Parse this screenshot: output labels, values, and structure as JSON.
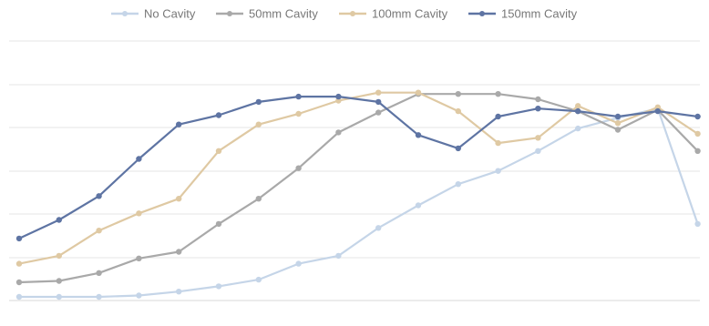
{
  "chart_data": {
    "type": "line",
    "x": [
      "1",
      "2",
      "3",
      "4",
      "5",
      "6",
      "7",
      "8",
      "9",
      "10",
      "11",
      "12",
      "13",
      "14",
      "15",
      "16",
      "17",
      "18"
    ],
    "ylim": [
      0,
      1.6
    ],
    "grid": true,
    "legend_position": "top-center",
    "series": [
      {
        "name": "No Cavity",
        "color": "#c5d5e8",
        "values": [
          0.0,
          0.0,
          0.0,
          0.01,
          0.04,
          0.08,
          0.13,
          0.25,
          0.31,
          0.52,
          0.69,
          0.85,
          0.95,
          1.1,
          1.27,
          1.35,
          1.42,
          0.55
        ]
      },
      {
        "name": "50mm Cavity",
        "color": "#a9a9a9",
        "values": [
          0.11,
          0.12,
          0.18,
          0.29,
          0.34,
          0.55,
          0.74,
          0.97,
          1.24,
          1.39,
          1.53,
          1.53,
          1.53,
          1.49,
          1.4,
          1.26,
          1.41,
          1.1
        ]
      },
      {
        "name": "100mm Cavity",
        "color": "#dfc9a3",
        "values": [
          0.25,
          0.31,
          0.5,
          0.63,
          0.74,
          1.1,
          1.3,
          1.38,
          1.48,
          1.54,
          1.54,
          1.4,
          1.16,
          1.2,
          1.44,
          1.31,
          1.43,
          1.23
        ]
      },
      {
        "name": "150mm Cavity",
        "color": "#5e74a3",
        "values": [
          0.44,
          0.58,
          0.76,
          1.04,
          1.3,
          1.37,
          1.47,
          1.51,
          1.51,
          1.47,
          1.22,
          1.12,
          1.36,
          1.42,
          1.4,
          1.36,
          1.4,
          1.36
        ]
      }
    ]
  }
}
